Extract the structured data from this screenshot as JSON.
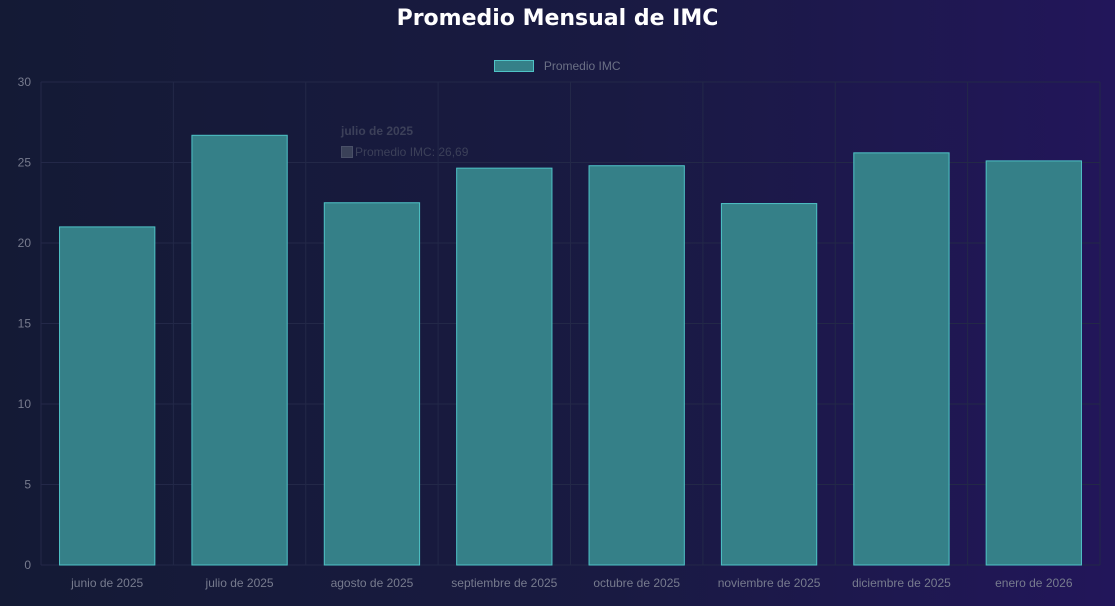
{
  "chart_data": {
    "type": "bar",
    "title": "Promedio Mensual de IMC",
    "categories": [
      "junio de 2025",
      "julio de 2025",
      "agosto de 2025",
      "septiembre de 2025",
      "octubre de 2025",
      "noviembre de 2025",
      "diciembre de 2025",
      "enero de 2026"
    ],
    "series": [
      {
        "name": "Promedio IMC",
        "values": [
          21.0,
          26.69,
          22.5,
          24.65,
          24.8,
          22.45,
          25.6,
          25.1
        ]
      }
    ],
    "ylim": [
      0,
      30
    ],
    "yticks": [
      "0",
      "5",
      "10",
      "15",
      "20",
      "25",
      "30"
    ],
    "grid": true,
    "legend_position": "top-center",
    "colors": {
      "bar_fill": "#358088",
      "bar_border": "#4fc3c7",
      "grid": "#232848",
      "tick_text": "#777b8e"
    },
    "tooltip": {
      "title": "julio de 2025",
      "label": "Promedio IMC: 26,69"
    }
  }
}
